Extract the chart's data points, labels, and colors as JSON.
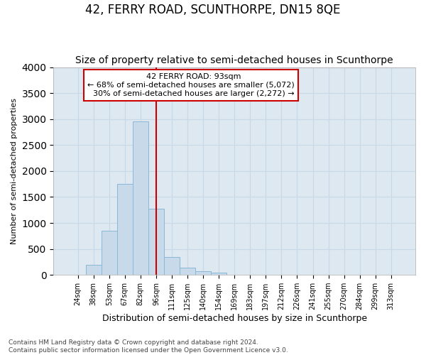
{
  "title": "42, FERRY ROAD, SCUNTHORPE, DN15 8QE",
  "subtitle": "Size of property relative to semi-detached houses in Scunthorpe",
  "xlabel": "Distribution of semi-detached houses by size in Scunthorpe",
  "ylabel": "Number of semi-detached properties",
  "footnote1": "Contains HM Land Registry data © Crown copyright and database right 2024.",
  "footnote2": "Contains public sector information licensed under the Open Government Licence v3.0.",
  "categories": [
    "24sqm",
    "38sqm",
    "53sqm",
    "67sqm",
    "82sqm",
    "96sqm",
    "111sqm",
    "125sqm",
    "140sqm",
    "154sqm",
    "169sqm",
    "183sqm",
    "197sqm",
    "212sqm",
    "226sqm",
    "241sqm",
    "255sqm",
    "270sqm",
    "284sqm",
    "299sqm",
    "313sqm"
  ],
  "values": [
    5,
    200,
    850,
    1750,
    2950,
    1280,
    340,
    140,
    75,
    50,
    0,
    0,
    0,
    0,
    0,
    0,
    0,
    0,
    0,
    0,
    0
  ],
  "bar_color": "#c8daea",
  "bar_edge_color": "#88b8d8",
  "property_line_label": "42 FERRY ROAD: 93sqm",
  "pct_smaller": 68,
  "pct_smaller_count": "5,072",
  "pct_larger": 30,
  "pct_larger_count": "2,272",
  "annotation_box_color": "#ffffff",
  "annotation_box_edge": "#cc0000",
  "vline_color": "#cc0000",
  "vline_x_idx": 5,
  "ylim": [
    0,
    4000
  ],
  "yticks": [
    0,
    500,
    1000,
    1500,
    2000,
    2500,
    3000,
    3500,
    4000
  ],
  "grid_color": "#c8d8e8",
  "plot_bg_color": "#dde8f0",
  "fig_bg_color": "#ffffff",
  "title_fontsize": 12,
  "subtitle_fontsize": 10,
  "ylabel_fontsize": 8,
  "xlabel_fontsize": 9,
  "tick_fontsize": 7,
  "annotation_fontsize": 8,
  "footnote_fontsize": 6.5
}
